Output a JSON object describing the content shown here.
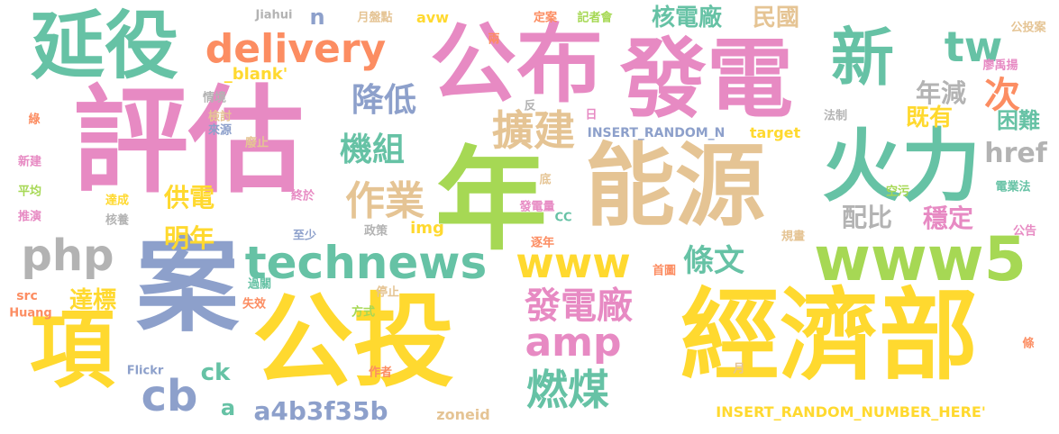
{
  "palette": {
    "pink": "#e78ac3",
    "green": "#66c2a5",
    "yellow": "#ffd92f",
    "orange": "#fc8d62",
    "blue": "#8da0cb",
    "lime": "#a6d854",
    "tan": "#e5c494",
    "gray": "#b3b3b3"
  },
  "words": [
    {
      "text": "評估",
      "color": "pink"
    },
    {
      "text": "年",
      "color": "lime"
    },
    {
      "text": "公布",
      "color": "pink"
    },
    {
      "text": "發電",
      "color": "pink"
    },
    {
      "text": "能源",
      "color": "tan"
    },
    {
      "text": "公投",
      "color": "yellow"
    },
    {
      "text": "經濟部",
      "color": "yellow"
    },
    {
      "text": "案",
      "color": "blue"
    },
    {
      "text": "項",
      "color": "yellow"
    },
    {
      "text": "延役",
      "color": "green"
    },
    {
      "text": "火力",
      "color": "green"
    },
    {
      "text": "新",
      "color": "green"
    },
    {
      "text": "www5",
      "color": "lime"
    },
    {
      "text": "delivery",
      "color": "orange"
    },
    {
      "text": "technews",
      "color": "green"
    },
    {
      "text": "php",
      "color": "gray"
    },
    {
      "text": "tw",
      "color": "green"
    },
    {
      "text": "次",
      "color": "orange"
    },
    {
      "text": "www",
      "color": "yellow"
    },
    {
      "text": "amp",
      "color": "pink"
    },
    {
      "text": "擴建",
      "color": "tan"
    },
    {
      "text": "作業",
      "color": "tan"
    },
    {
      "text": "發電廠",
      "color": "pink"
    },
    {
      "text": "燃煤",
      "color": "green"
    },
    {
      "text": "cb",
      "color": "blue"
    },
    {
      "text": "降低",
      "color": "blue"
    },
    {
      "text": "機組",
      "color": "green"
    },
    {
      "text": "核電廠",
      "color": "green"
    },
    {
      "text": "民國",
      "color": "tan"
    },
    {
      "text": "年減",
      "color": "gray"
    },
    {
      "text": "既有",
      "color": "yellow"
    },
    {
      "text": "困難",
      "color": "green"
    },
    {
      "text": "href",
      "color": "gray"
    },
    {
      "text": "條文",
      "color": "green"
    },
    {
      "text": "配比",
      "color": "gray"
    },
    {
      "text": "穩定",
      "color": "pink"
    },
    {
      "text": "供電",
      "color": "yellow"
    },
    {
      "text": "明年",
      "color": "yellow"
    },
    {
      "text": "達標",
      "color": "yellow"
    },
    {
      "text": "a4b3f35b",
      "color": "blue"
    },
    {
      "text": "ck",
      "color": "green"
    },
    {
      "text": "a",
      "color": "green"
    },
    {
      "text": "n",
      "color": "blue"
    },
    {
      "text": "avw",
      "color": "yellow"
    },
    {
      "text": "img",
      "color": "yellow"
    },
    {
      "text": "zoneid",
      "color": "tan"
    },
    {
      "text": "INSERT_RANDOM_NUMBER_HERE'",
      "color": "yellow"
    },
    {
      "text": "INSERT_RANDOM_N",
      "color": "blue"
    },
    {
      "text": "target",
      "color": "yellow"
    },
    {
      "text": "_blank'",
      "color": "yellow"
    },
    {
      "text": "Jiahui",
      "color": "gray"
    },
    {
      "text": "月盤點",
      "color": "tan"
    },
    {
      "text": "定案",
      "color": "orange"
    },
    {
      "text": "記者會",
      "color": "lime"
    },
    {
      "text": "公投案",
      "color": "tan"
    },
    {
      "text": "廖禹揚",
      "color": "pink"
    },
    {
      "text": "法制",
      "color": "gray"
    },
    {
      "text": "空污",
      "color": "lime"
    },
    {
      "text": "電業法",
      "color": "green"
    },
    {
      "text": "公告",
      "color": "pink"
    },
    {
      "text": "情境",
      "color": "gray"
    },
    {
      "text": "檢討",
      "color": "tan"
    },
    {
      "text": "來源",
      "color": "blue"
    },
    {
      "text": "廢止",
      "color": "tan"
    },
    {
      "text": "新建",
      "color": "pink"
    },
    {
      "text": "平均",
      "color": "lime"
    },
    {
      "text": "推演",
      "color": "pink"
    },
    {
      "text": "達成",
      "color": "yellow"
    },
    {
      "text": "核養",
      "color": "gray"
    },
    {
      "text": "終於",
      "color": "pink"
    },
    {
      "text": "政策",
      "color": "gray"
    },
    {
      "text": "至少",
      "color": "blue"
    },
    {
      "text": "過關",
      "color": "green"
    },
    {
      "text": "失效",
      "color": "orange"
    },
    {
      "text": "方式",
      "color": "lime"
    },
    {
      "text": "停止",
      "color": "tan"
    },
    {
      "text": "發電量",
      "color": "pink"
    },
    {
      "text": "逐年",
      "color": "orange"
    },
    {
      "text": "規畫",
      "color": "tan"
    },
    {
      "text": "首圖",
      "color": "orange"
    },
    {
      "text": "作者",
      "color": "orange"
    },
    {
      "text": "src",
      "color": "orange"
    },
    {
      "text": "Huang",
      "color": "orange"
    },
    {
      "text": "Flickr",
      "color": "blue"
    },
    {
      "text": "CC",
      "color": "green"
    },
    {
      "text": "底",
      "color": "tan"
    },
    {
      "text": "日",
      "color": "pink"
    },
    {
      "text": "反",
      "color": "gray"
    },
    {
      "text": "兩",
      "color": "orange"
    },
    {
      "text": "綠",
      "color": "orange"
    },
    {
      "text": "條",
      "color": "orange"
    },
    {
      "text": "月",
      "color": "tan"
    }
  ]
}
